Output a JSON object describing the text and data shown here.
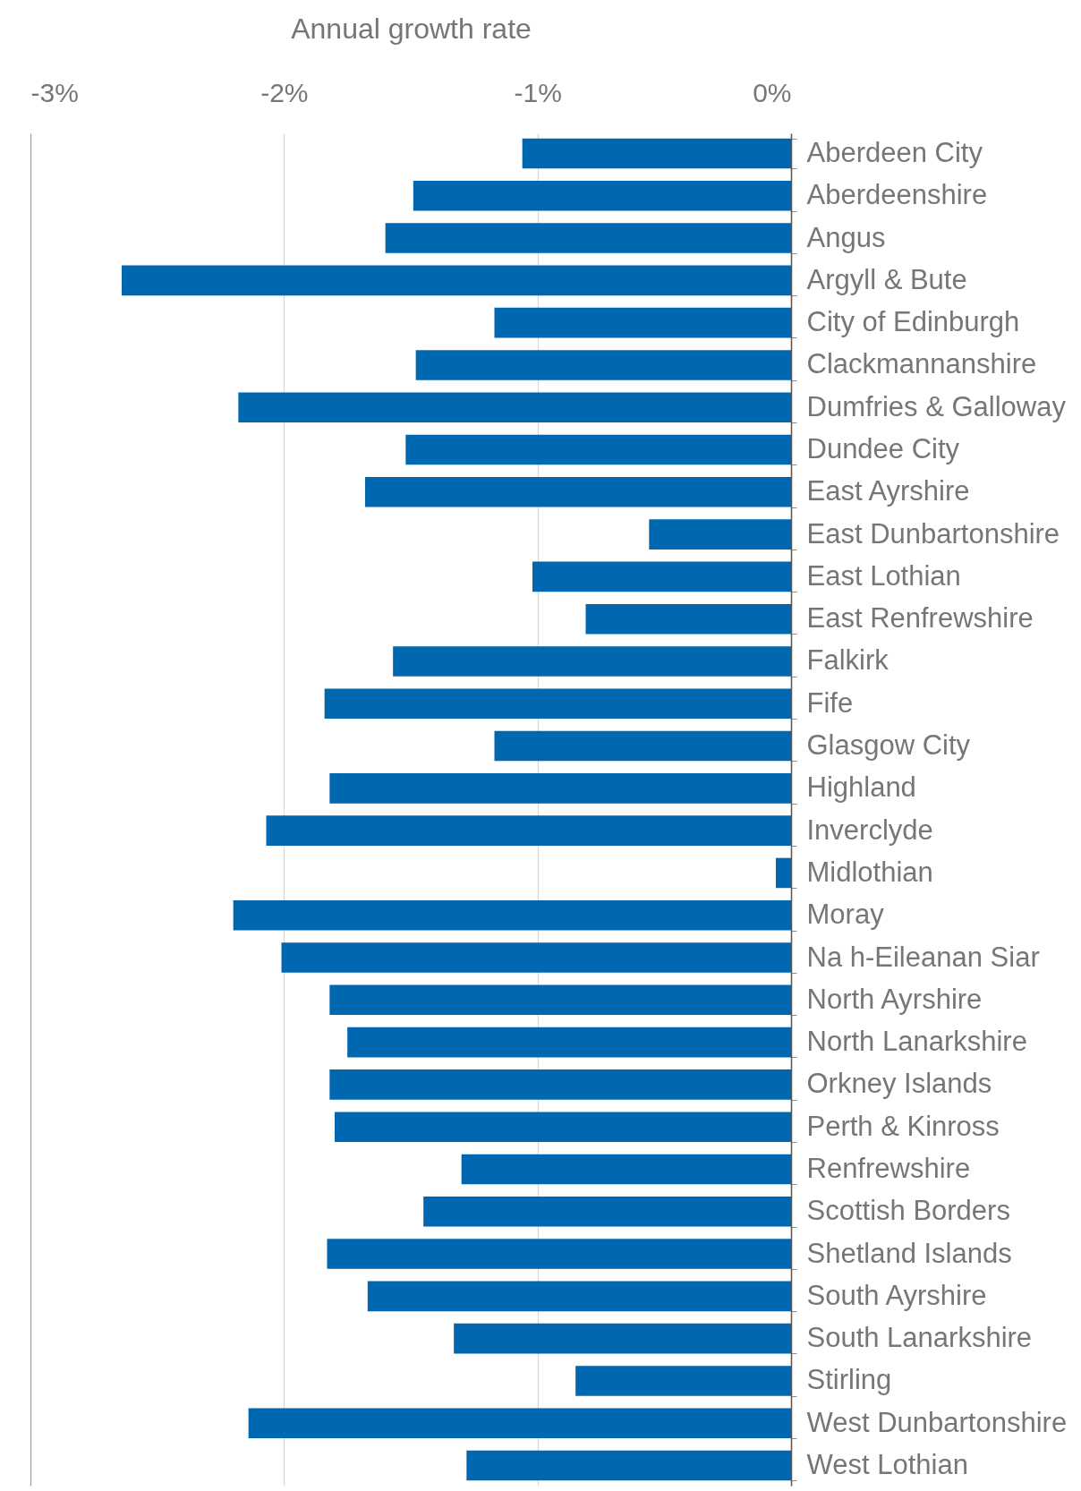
{
  "chart_data": {
    "type": "bar",
    "orientation": "horizontal",
    "xlabel": "Annual growth rate",
    "categories": [
      "Aberdeen City",
      "Aberdeenshire",
      "Angus",
      "Argyll & Bute",
      "City of Edinburgh",
      "Clackmannanshire",
      "Dumfries & Galloway",
      "Dundee City",
      "East Ayrshire",
      "East Dunbartonshire",
      "East Lothian",
      "East Renfrewshire",
      "Falkirk",
      "Fife",
      "Glasgow City",
      "Highland",
      "Inverclyde",
      "Midlothian",
      "Moray",
      "Na h-Eileanan Siar",
      "North Ayrshire",
      "North Lanarkshire",
      "Orkney Islands",
      "Perth & Kinross",
      "Renfrewshire",
      "Scottish Borders",
      "Shetland Islands",
      "South Ayrshire",
      "South Lanarkshire",
      "Stirling",
      "West Dunbartonshire",
      "West Lothian"
    ],
    "values": [
      -1.06,
      -1.49,
      -1.6,
      -2.64,
      -1.17,
      -1.48,
      -2.18,
      -1.52,
      -1.68,
      -0.56,
      -1.02,
      -0.81,
      -1.57,
      -1.84,
      -1.17,
      -1.82,
      -2.07,
      -0.06,
      -2.2,
      -2.01,
      -1.82,
      -1.75,
      -1.82,
      -1.8,
      -1.3,
      -1.45,
      -1.83,
      -1.67,
      -1.33,
      -0.85,
      -2.14,
      -1.28
    ],
    "color": "#0067b1",
    "xlim": [
      -3,
      0
    ],
    "xticks": [
      {
        "value": -3,
        "label": "-3%"
      },
      {
        "value": -2,
        "label": "-2%"
      },
      {
        "value": -1,
        "label": "-1%"
      },
      {
        "value": 0,
        "label": "0%"
      }
    ],
    "grid": "x"
  }
}
